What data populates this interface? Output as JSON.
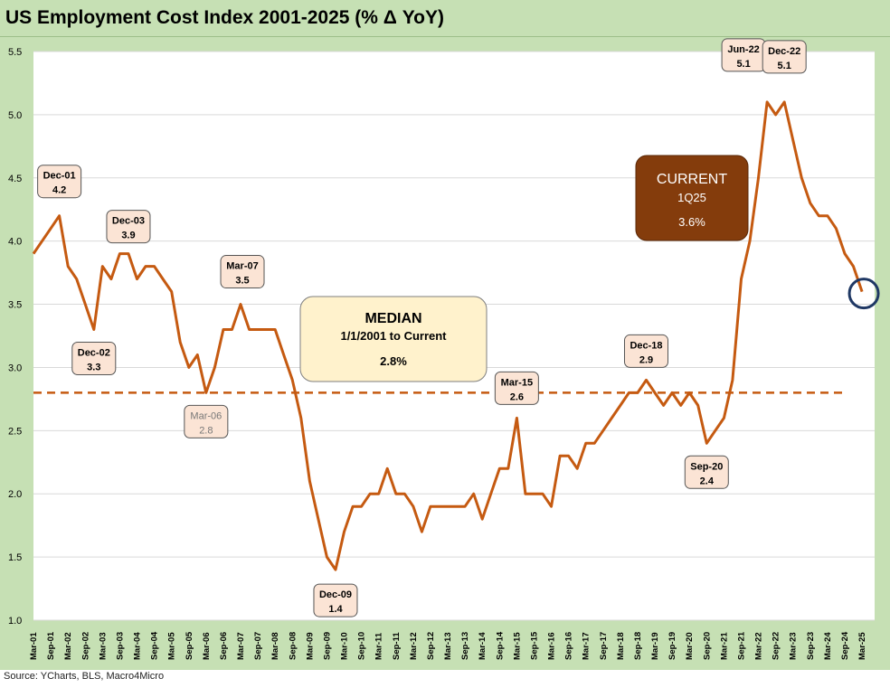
{
  "title": "US Employment Cost Index 2001-2025 (% Δ YoY)",
  "source": "Source: YCharts, BLS, Macro4Micro",
  "colors": {
    "line": "#c55a11",
    "panel": "#c6e0b4",
    "label_fill": "#fbe4d5",
    "current_box": "#843c0c",
    "median_box": "#fff2cc",
    "circle": "#1f3864"
  },
  "median_box": {
    "title": "MEDIAN",
    "subtitle": "1/1/2001 to Current",
    "value": "2.8%"
  },
  "current_box": {
    "title": "CURRENT",
    "subtitle": "1Q25",
    "value": "3.6%"
  },
  "chart_data": {
    "type": "line",
    "title": "US Employment Cost Index 2001-2025 (% Δ YoY)",
    "xlabel": "",
    "ylabel": "",
    "ylim": [
      1.0,
      5.5
    ],
    "yticks": [
      "1.0",
      "1.5",
      "2.0",
      "2.5",
      "3.0",
      "3.5",
      "4.0",
      "4.5",
      "5.0",
      "5.5"
    ],
    "grid": true,
    "xtick_labels": [
      "Mar-01",
      "Sep-01",
      "Mar-02",
      "Sep-02",
      "Mar-03",
      "Sep-03",
      "Mar-04",
      "Sep-04",
      "Mar-05",
      "Sep-05",
      "Mar-06",
      "Sep-06",
      "Mar-07",
      "Sep-07",
      "Mar-08",
      "Sep-08",
      "Mar-09",
      "Sep-09",
      "Mar-10",
      "Sep-10",
      "Mar-11",
      "Sep-11",
      "Mar-12",
      "Sep-12",
      "Mar-13",
      "Sep-13",
      "Mar-14",
      "Sep-14",
      "Mar-15",
      "Sep-15",
      "Mar-16",
      "Sep-16",
      "Mar-17",
      "Sep-17",
      "Mar-18",
      "Sep-18",
      "Mar-19",
      "Sep-19",
      "Mar-20",
      "Sep-20",
      "Mar-21",
      "Sep-21",
      "Mar-22",
      "Sep-22",
      "Mar-23",
      "Sep-23",
      "Mar-24",
      "Sep-24",
      "Mar-25"
    ],
    "median": 2.8,
    "series": [
      {
        "name": "",
        "start": "Mar-01",
        "frequency": "quarterly",
        "values": [
          3.9,
          4.0,
          4.1,
          4.2,
          3.8,
          3.7,
          3.5,
          3.3,
          3.8,
          3.7,
          3.9,
          3.9,
          3.7,
          3.8,
          3.8,
          3.7,
          3.6,
          3.2,
          3.0,
          3.1,
          2.8,
          3.0,
          3.3,
          3.3,
          3.5,
          3.3,
          3.3,
          3.3,
          3.3,
          3.1,
          2.9,
          2.6,
          2.1,
          1.8,
          1.5,
          1.4,
          1.7,
          1.9,
          1.9,
          2.0,
          2.0,
          2.2,
          2.0,
          2.0,
          1.9,
          1.7,
          1.9,
          1.9,
          1.9,
          1.9,
          1.9,
          2.0,
          1.8,
          2.0,
          2.2,
          2.2,
          2.6,
          2.0,
          2.0,
          2.0,
          1.9,
          2.3,
          2.3,
          2.2,
          2.4,
          2.4,
          2.5,
          2.6,
          2.7,
          2.8,
          2.8,
          2.9,
          2.8,
          2.7,
          2.8,
          2.7,
          2.8,
          2.7,
          2.4,
          2.5,
          2.6,
          2.9,
          3.7,
          4.0,
          4.5,
          5.1,
          5.0,
          5.1,
          4.8,
          4.5,
          4.3,
          4.2,
          4.2,
          4.1,
          3.9,
          3.8,
          3.6
        ]
      }
    ],
    "annotations": [
      {
        "label": "Dec-01",
        "value": "4.2",
        "style": "box"
      },
      {
        "label": "Dec-02",
        "value": "3.3",
        "style": "box"
      },
      {
        "label": "Dec-03",
        "value": "3.9",
        "style": "box"
      },
      {
        "label": "Mar-06",
        "value": "2.8",
        "style": "grey"
      },
      {
        "label": "Mar-07",
        "value": "3.5",
        "style": "box"
      },
      {
        "label": "Dec-09",
        "value": "1.4",
        "style": "box"
      },
      {
        "label": "Mar-15",
        "value": "2.6",
        "style": "box"
      },
      {
        "label": "Dec-18",
        "value": "2.9",
        "style": "box"
      },
      {
        "label": "Sep-20",
        "value": "2.4",
        "style": "box"
      },
      {
        "label": "Jun-22",
        "value": "5.1",
        "style": "box"
      },
      {
        "label": "Dec-22",
        "value": "5.1",
        "style": "box"
      }
    ]
  }
}
